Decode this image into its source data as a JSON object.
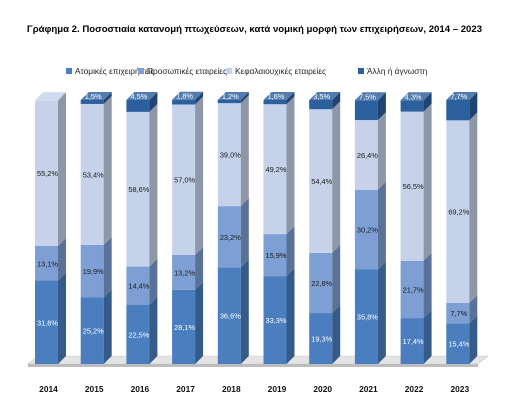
{
  "chart_data": {
    "type": "bar",
    "stacked": true,
    "stacked_percent": true,
    "title": "Γράφημα 2. Ποσοστιαία κατανομή πτωχεύσεων, κατά νομική μορφή των επιχειρήσεων, 2014 – 2023",
    "categories": [
      "2014",
      "2015",
      "2016",
      "2017",
      "2018",
      "2019",
      "2020",
      "2021",
      "2022",
      "2023"
    ],
    "series": [
      {
        "name": "Ατομικές επιχειρήσεις",
        "color": "#4a7ebf",
        "values": [
          31.6,
          25.2,
          22.5,
          28.1,
          36.6,
          33.3,
          19.3,
          35.8,
          17.4,
          15.4
        ]
      },
      {
        "name": "Προσωπικές εταιρείες",
        "color": "#7e9fd3",
        "values": [
          13.1,
          19.9,
          14.4,
          13.2,
          23.2,
          15.9,
          22.8,
          30.2,
          21.7,
          7.7
        ]
      },
      {
        "name": "Κεφαλαιουχικές εταιρείες",
        "color": "#c5d2ea",
        "values": [
          55.2,
          53.4,
          58.6,
          57.0,
          39.0,
          49.2,
          54.4,
          26.4,
          56.5,
          69.2
        ]
      },
      {
        "name": "Άλλη ή άγνωστη",
        "color": "#2c5f9e",
        "values": [
          0.0,
          1.5,
          4.5,
          1.8,
          1.2,
          1.6,
          3.5,
          7.5,
          4.3,
          7.7
        ]
      }
    ],
    "labels": [
      [
        "31,6%",
        "25,2%",
        "22,5%",
        "28,1%",
        "36,6%",
        "33,3%",
        "19,3%",
        "35,8%",
        "17,4%",
        "15,4%"
      ],
      [
        "13,1%",
        "19,9%",
        "14,4%",
        "13,2%",
        "23,2%",
        "15,9%",
        "22,8%",
        "30,2%",
        "21,7%",
        "7,7%"
      ],
      [
        "55,2%",
        "53,4%",
        "58,6%",
        "57,0%",
        "39,0%",
        "49,2%",
        "54,4%",
        "26,4%",
        "56,5%",
        "69,2%"
      ],
      [
        "",
        "1,5%",
        "4,5%",
        "1,8%",
        "1,2%",
        "1,6%",
        "3,5%",
        "7,5%",
        "4,3%",
        "7,7%"
      ]
    ],
    "ylim": [
      0,
      100
    ],
    "legend_position": "top",
    "grid": false,
    "style": "3d-column"
  }
}
